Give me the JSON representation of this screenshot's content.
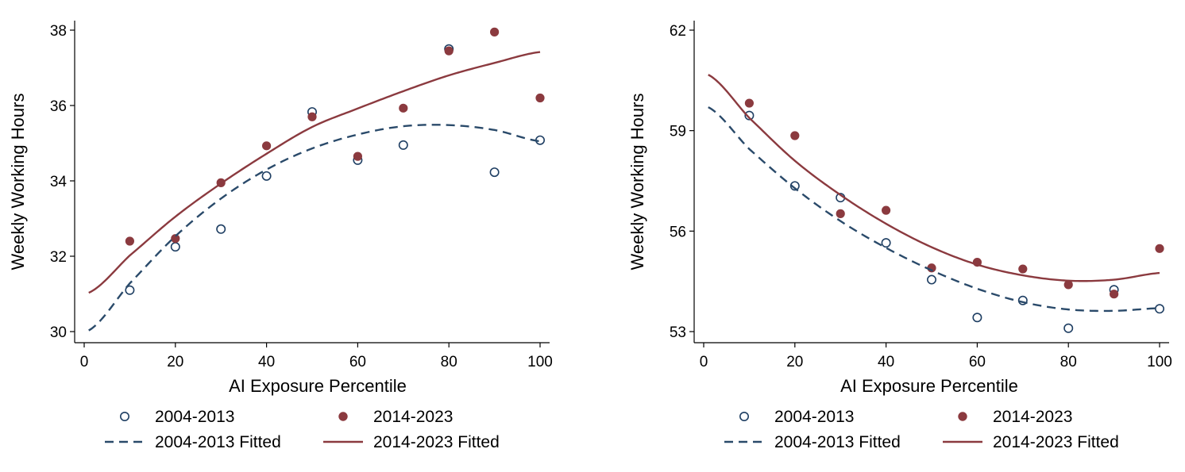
{
  "chart_data": [
    {
      "type": "scatter",
      "title": "",
      "xlabel": "AI Exposure Percentile",
      "ylabel": "Weekly Working Hours",
      "xlim": [
        0,
        100
      ],
      "ylim": [
        30,
        38
      ],
      "xticks": [
        0,
        20,
        40,
        60,
        80,
        100
      ],
      "yticks": [
        30,
        32,
        34,
        36,
        38
      ],
      "grid": false,
      "legend_position": "bottom",
      "series": [
        {
          "name": "2004-2013",
          "kind": "scatter-hollow",
          "color": "#1f3f63",
          "x": [
            10,
            20,
            30,
            40,
            50,
            60,
            70,
            80,
            90,
            100
          ],
          "y": [
            31.1,
            32.25,
            32.72,
            34.13,
            35.83,
            34.55,
            34.95,
            37.5,
            34.23,
            35.08
          ]
        },
        {
          "name": "2014-2023",
          "kind": "scatter-filled",
          "color": "#8b3a3f",
          "x": [
            10,
            20,
            30,
            40,
            50,
            60,
            70,
            80,
            90,
            100
          ],
          "y": [
            32.4,
            32.47,
            33.95,
            34.93,
            35.7,
            34.65,
            35.93,
            37.45,
            37.95,
            36.2
          ]
        },
        {
          "name": "2004-2013 Fitted",
          "kind": "dashed-line",
          "color": "#2a4a6a",
          "x": [
            1,
            10,
            20,
            30,
            40,
            50,
            60,
            70,
            80,
            90,
            100
          ],
          "y": [
            30.03,
            31.28,
            32.53,
            33.53,
            34.3,
            34.86,
            35.23,
            35.45,
            35.48,
            35.35,
            35.05
          ]
        },
        {
          "name": "2014-2023 Fitted",
          "kind": "solid-line",
          "color": "#8b3a3f",
          "x": [
            1,
            10,
            20,
            30,
            40,
            50,
            60,
            70,
            80,
            90,
            100
          ],
          "y": [
            31.03,
            32.02,
            33.05,
            33.93,
            34.72,
            35.43,
            35.92,
            36.38,
            36.8,
            37.13,
            37.42
          ]
        }
      ]
    },
    {
      "type": "scatter",
      "title": "",
      "xlabel": "AI Exposure Percentile",
      "ylabel": "Weekly Working Hours",
      "xlim": [
        0,
        100
      ],
      "ylim": [
        53,
        62
      ],
      "xticks": [
        0,
        20,
        40,
        60,
        80,
        100
      ],
      "yticks": [
        53,
        56,
        59,
        62
      ],
      "grid": false,
      "legend_position": "bottom",
      "series": [
        {
          "name": "2004-2013",
          "kind": "scatter-hollow",
          "color": "#1f3f63",
          "x": [
            10,
            20,
            30,
            40,
            50,
            60,
            70,
            80,
            90,
            100
          ],
          "y": [
            59.45,
            57.35,
            57.0,
            55.65,
            54.55,
            53.42,
            53.93,
            53.1,
            54.25,
            53.68
          ]
        },
        {
          "name": "2014-2023",
          "kind": "scatter-filled",
          "color": "#8b3a3f",
          "x": [
            10,
            20,
            30,
            40,
            50,
            60,
            70,
            80,
            90,
            100
          ],
          "y": [
            59.82,
            58.85,
            56.52,
            56.62,
            54.9,
            55.07,
            54.87,
            54.4,
            54.12,
            55.48
          ]
        },
        {
          "name": "2004-2013 Fitted",
          "kind": "dashed-line",
          "color": "#2a4a6a",
          "x": [
            1,
            10,
            20,
            30,
            40,
            50,
            60,
            70,
            80,
            90,
            100
          ],
          "y": [
            59.7,
            58.45,
            57.28,
            56.3,
            55.5,
            54.83,
            54.28,
            53.88,
            53.66,
            53.62,
            53.7
          ]
        },
        {
          "name": "2014-2023 Fitted",
          "kind": "solid-line",
          "color": "#8b3a3f",
          "x": [
            1,
            10,
            20,
            30,
            40,
            50,
            60,
            70,
            80,
            90,
            100
          ],
          "y": [
            60.67,
            59.38,
            58.1,
            57.08,
            56.22,
            55.52,
            55.0,
            54.68,
            54.52,
            54.55,
            54.75
          ]
        }
      ]
    }
  ]
}
